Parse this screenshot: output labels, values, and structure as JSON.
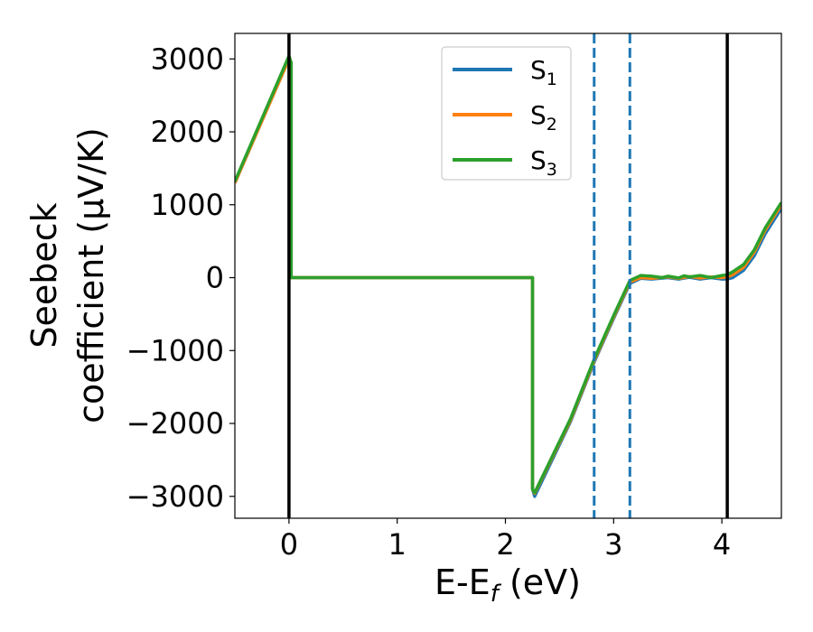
{
  "chart_data": {
    "type": "line",
    "title": "",
    "xlabel": "E-E_f (eV)",
    "xlabel_parts": {
      "main": "E-E",
      "sub": "f",
      "tail": " (eV)"
    },
    "ylabel_line1": "Seebeck",
    "ylabel_line2": "coefficient  (μV/K)",
    "xlim": [
      -0.5,
      4.55
    ],
    "ylim": [
      -3300,
      3350
    ],
    "xticks": [
      0,
      1,
      2,
      3,
      4
    ],
    "xtick_labels": [
      "0",
      "1",
      "2",
      "3",
      "4"
    ],
    "yticks": [
      -3000,
      -2000,
      -1000,
      0,
      1000,
      2000,
      3000
    ],
    "ytick_labels": [
      "−3000",
      "−2000",
      "−1000",
      "0",
      "1000",
      "2000",
      "3000"
    ],
    "grid": false,
    "legend_position": "top-center",
    "vertical_lines": [
      {
        "x": 0.0,
        "style": "solid",
        "color": "#000000"
      },
      {
        "x": 4.05,
        "style": "solid",
        "color": "#000000"
      },
      {
        "x": 2.82,
        "style": "dashed",
        "color": "#1f77b4"
      },
      {
        "x": 3.15,
        "style": "dashed",
        "color": "#1f77b4"
      }
    ],
    "series": [
      {
        "name": "S_1",
        "label_main": "S",
        "label_sub": "1",
        "color": "#1f77b4",
        "x": [
          -0.5,
          0.0,
          0.02,
          0.02,
          2.25,
          2.25,
          2.27,
          2.6,
          2.82,
          3.0,
          3.15,
          3.25,
          3.35,
          3.5,
          3.6,
          3.7,
          3.8,
          3.9,
          4.0,
          4.05,
          4.1,
          4.2,
          4.3,
          4.4,
          4.55
        ],
        "y": [
          1300,
          3000,
          2950,
          0,
          0,
          -2900,
          -3000,
          -1980,
          -1160,
          -560,
          -80,
          -10,
          -20,
          0,
          -20,
          5,
          -20,
          0,
          -20,
          -20,
          0,
          100,
          300,
          600,
          950
        ]
      },
      {
        "name": "S_2",
        "label_main": "S",
        "label_sub": "2",
        "color": "#ff7f0e",
        "x": [
          -0.5,
          0.0,
          0.02,
          0.02,
          2.25,
          2.25,
          2.27,
          2.6,
          2.82,
          3.0,
          3.15,
          3.25,
          3.35,
          3.5,
          3.6,
          3.7,
          3.8,
          3.9,
          4.0,
          4.05,
          4.1,
          4.2,
          4.3,
          4.4,
          4.55
        ],
        "y": [
          1300,
          3000,
          2950,
          0,
          0,
          -2900,
          -2960,
          -1960,
          -1140,
          -540,
          -60,
          0,
          -10,
          10,
          -10,
          15,
          -5,
          10,
          0,
          10,
          40,
          140,
          350,
          650,
          1000
        ]
      },
      {
        "name": "S_3",
        "label_main": "S",
        "label_sub": "3",
        "color": "#2ca02c",
        "x": [
          -0.5,
          0.0,
          0.02,
          0.02,
          2.25,
          2.25,
          2.27,
          2.6,
          2.82,
          3.0,
          3.15,
          3.25,
          3.35,
          3.45,
          3.5,
          3.6,
          3.65,
          3.7,
          3.8,
          3.9,
          4.0,
          4.05,
          4.1,
          4.2,
          4.3,
          4.4,
          4.55
        ],
        "y": [
          1320,
          3040,
          2950,
          0,
          0,
          -2900,
          -2950,
          -1940,
          -1120,
          -520,
          -40,
          30,
          20,
          0,
          20,
          -5,
          25,
          10,
          30,
          0,
          30,
          40,
          80,
          180,
          380,
          680,
          1030
        ]
      }
    ]
  }
}
